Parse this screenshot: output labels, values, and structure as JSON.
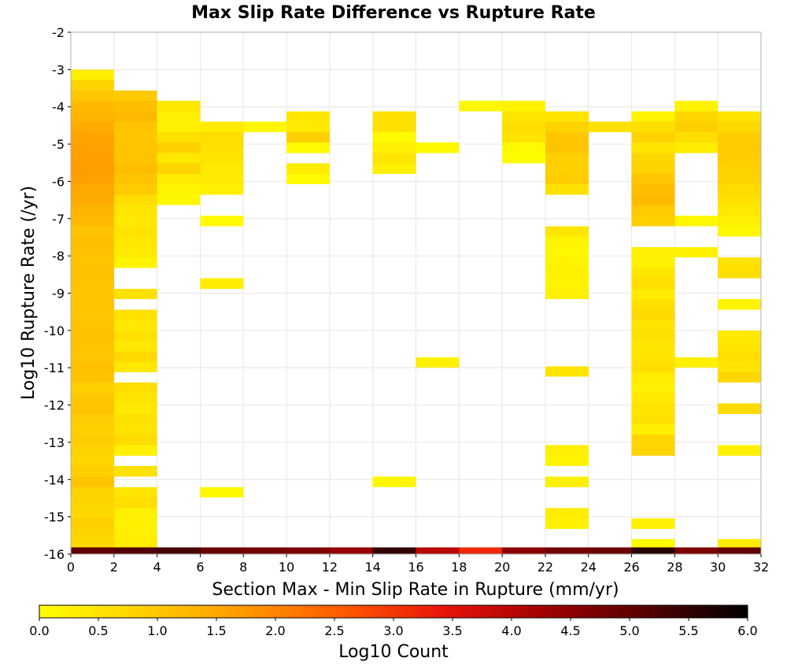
{
  "chart_data": {
    "type": "heatmap",
    "title": "Max Slip Rate Difference vs Rupture Rate",
    "xlabel": "Section Max - Min Slip Rate in Rupture (mm/yr)",
    "ylabel": "Log10 Rupture Rate (/yr)",
    "xlim": [
      0,
      32
    ],
    "ylim": [
      -16,
      -2
    ],
    "x_ticks": [
      "0",
      "2",
      "4",
      "6",
      "8",
      "10",
      "12",
      "14",
      "16",
      "18",
      "20",
      "22",
      "24",
      "26",
      "28",
      "30",
      "32"
    ],
    "y_ticks": [
      "-2",
      "-3",
      "-4",
      "-5",
      "-6",
      "-7",
      "-8",
      "-9",
      "-10",
      "-11",
      "-12",
      "-13",
      "-14",
      "-15",
      "-16"
    ],
    "grid": true,
    "x_bin_width": 2,
    "y_bin_height": 0.28,
    "colorbar": {
      "label": "Log10 Count",
      "min": 0.0,
      "max": 6.0,
      "ticks": [
        "0.0",
        "0.5",
        "1.0",
        "1.5",
        "2.0",
        "2.5",
        "3.0",
        "3.5",
        "4.0",
        "4.5",
        "5.0",
        "5.5",
        "6.0"
      ],
      "stops": [
        "#ffff00",
        "#ffd000",
        "#ff9a00",
        "#ff5a00",
        "#e8140a",
        "#a00000",
        "#550000",
        "#000000"
      ]
    },
    "columns": [
      {
        "x": 1,
        "cells": [
          [
            -3.14,
            0.3
          ],
          [
            -3.42,
            0.8
          ],
          [
            -3.7,
            1.0
          ],
          [
            -3.98,
            1.2
          ],
          [
            -4.26,
            1.3
          ],
          [
            -4.54,
            1.45
          ],
          [
            -4.82,
            1.55
          ],
          [
            -5.1,
            1.6
          ],
          [
            -5.38,
            1.62
          ],
          [
            -5.66,
            1.65
          ],
          [
            -5.94,
            1.6
          ],
          [
            -6.22,
            1.5
          ],
          [
            -6.5,
            1.45
          ],
          [
            -6.78,
            1.3
          ],
          [
            -7.06,
            1.2
          ],
          [
            -7.34,
            1.05
          ],
          [
            -7.62,
            1.15
          ],
          [
            -7.9,
            1.1
          ],
          [
            -8.18,
            1.05
          ],
          [
            -8.46,
            1.1
          ],
          [
            -8.74,
            1.05
          ],
          [
            -9.02,
            1.0
          ],
          [
            -9.3,
            1.05
          ],
          [
            -9.58,
            1.0
          ],
          [
            -9.86,
            1.05
          ],
          [
            -10.14,
            1.1
          ],
          [
            -10.42,
            1.05
          ],
          [
            -10.7,
            1.0
          ],
          [
            -10.98,
            1.1
          ],
          [
            -11.26,
            1.05
          ],
          [
            -11.54,
            0.85
          ],
          [
            -11.82,
            1.0
          ],
          [
            -12.1,
            1.05
          ],
          [
            -12.38,
            0.9
          ],
          [
            -12.66,
            0.85
          ],
          [
            -12.94,
            0.9
          ],
          [
            -13.22,
            0.8
          ],
          [
            -13.5,
            0.75
          ],
          [
            -13.78,
            0.85
          ],
          [
            -14.06,
            1.05
          ],
          [
            -14.34,
            0.8
          ],
          [
            -14.62,
            0.75
          ],
          [
            -14.9,
            0.7
          ],
          [
            -15.18,
            0.85
          ],
          [
            -15.46,
            0.75
          ],
          [
            -15.74,
            0.7
          ],
          [
            -15.96,
            5.0
          ]
        ]
      },
      {
        "x": 3,
        "cells": [
          [
            -3.7,
            0.95
          ],
          [
            -3.98,
            1.15
          ],
          [
            -4.26,
            1.2
          ],
          [
            -4.54,
            1.05
          ],
          [
            -4.82,
            1.0
          ],
          [
            -5.1,
            1.05
          ],
          [
            -5.38,
            1.05
          ],
          [
            -5.66,
            1.15
          ],
          [
            -5.94,
            1.05
          ],
          [
            -6.22,
            0.95
          ],
          [
            -6.5,
            0.6
          ],
          [
            -6.78,
            0.45
          ],
          [
            -7.06,
            0.4
          ],
          [
            -7.34,
            0.5
          ],
          [
            -7.62,
            0.4
          ],
          [
            -7.9,
            0.35
          ],
          [
            -8.18,
            0.2
          ],
          [
            -9.02,
            0.55
          ],
          [
            -9.58,
            0.55
          ],
          [
            -9.86,
            0.4
          ],
          [
            -10.14,
            0.55
          ],
          [
            -10.42,
            0.4
          ],
          [
            -10.7,
            0.7
          ],
          [
            -10.98,
            0.4
          ],
          [
            -11.54,
            0.6
          ],
          [
            -11.82,
            0.5
          ],
          [
            -12.1,
            0.4
          ],
          [
            -12.38,
            0.55
          ],
          [
            -12.66,
            0.5
          ],
          [
            -12.94,
            0.65
          ],
          [
            -13.22,
            0.25
          ],
          [
            -13.78,
            0.55
          ],
          [
            -14.34,
            0.45
          ],
          [
            -14.62,
            0.6
          ],
          [
            -14.9,
            0.3
          ],
          [
            -15.18,
            0.25
          ],
          [
            -15.46,
            0.3
          ],
          [
            -15.74,
            0.35
          ],
          [
            -15.96,
            5.2
          ]
        ]
      },
      {
        "x": 5,
        "cells": [
          [
            -3.98,
            0.4
          ],
          [
            -4.26,
            0.3
          ],
          [
            -4.54,
            0.25
          ],
          [
            -4.82,
            0.55
          ],
          [
            -5.1,
            0.85
          ],
          [
            -5.38,
            0.4
          ],
          [
            -5.66,
            0.75
          ],
          [
            -5.94,
            0.35
          ],
          [
            -6.22,
            0.2
          ],
          [
            -6.5,
            0.15
          ],
          [
            -15.96,
            5.3
          ]
        ]
      },
      {
        "x": 7,
        "cells": [
          [
            -4.54,
            0.35
          ],
          [
            -4.82,
            0.6
          ],
          [
            -5.1,
            0.55
          ],
          [
            -5.38,
            0.5
          ],
          [
            -5.66,
            0.4
          ],
          [
            -5.94,
            0.4
          ],
          [
            -6.22,
            0.3
          ],
          [
            -7.06,
            0.1
          ],
          [
            -8.74,
            0.35
          ],
          [
            -14.34,
            0.15
          ],
          [
            -15.96,
            4.9
          ]
        ]
      },
      {
        "x": 9,
        "cells": [
          [
            -4.54,
            0.15
          ],
          [
            -15.96,
            4.8
          ]
        ]
      },
      {
        "x": 11,
        "cells": [
          [
            -4.26,
            0.45
          ],
          [
            -4.54,
            0.4
          ],
          [
            -4.82,
            0.85
          ],
          [
            -5.1,
            0.1
          ],
          [
            -5.66,
            0.35
          ],
          [
            -5.94,
            0.1
          ],
          [
            -15.96,
            4.7
          ]
        ]
      },
      {
        "x": 13,
        "cells": [
          [
            -15.96,
            4.4
          ]
        ]
      },
      {
        "x": 15,
        "cells": [
          [
            -4.26,
            0.55
          ],
          [
            -4.54,
            0.55
          ],
          [
            -4.82,
            0.1
          ],
          [
            -5.1,
            0.3
          ],
          [
            -5.38,
            0.5
          ],
          [
            -5.66,
            0.3
          ],
          [
            -14.06,
            0.15
          ],
          [
            -15.96,
            5.5
          ]
        ]
      },
      {
        "x": 17,
        "cells": [
          [
            -5.1,
            0.15
          ],
          [
            -10.86,
            0.25
          ],
          [
            -15.96,
            4.0
          ]
        ]
      },
      {
        "x": 19,
        "cells": [
          [
            -3.98,
            0.15
          ],
          [
            -15.96,
            3.2
          ]
        ]
      },
      {
        "x": 21,
        "cells": [
          [
            -3.98,
            0.2
          ],
          [
            -4.26,
            0.45
          ],
          [
            -4.54,
            0.6
          ],
          [
            -4.82,
            0.5
          ],
          [
            -5.1,
            0.1
          ],
          [
            -5.38,
            0.05
          ],
          [
            -15.96,
            4.5
          ]
        ]
      },
      {
        "x": 23,
        "cells": [
          [
            -4.26,
            0.5
          ],
          [
            -4.54,
            0.8
          ],
          [
            -4.82,
            1.0
          ],
          [
            -5.1,
            1.05
          ],
          [
            -5.38,
            0.85
          ],
          [
            -5.66,
            0.85
          ],
          [
            -5.94,
            0.9
          ],
          [
            -6.22,
            0.55
          ],
          [
            -7.34,
            0.45
          ],
          [
            -7.62,
            0.2
          ],
          [
            -7.9,
            0.15
          ],
          [
            -8.18,
            0.2
          ],
          [
            -8.46,
            0.25
          ],
          [
            -8.74,
            0.2
          ],
          [
            -9.02,
            0.3
          ],
          [
            -11.1,
            0.5
          ],
          [
            -13.22,
            0.3
          ],
          [
            -13.5,
            0.2
          ],
          [
            -14.06,
            0.3
          ],
          [
            -14.9,
            0.35
          ],
          [
            -15.18,
            0.25
          ],
          [
            -15.96,
            4.8
          ]
        ]
      },
      {
        "x": 25,
        "cells": [
          [
            -4.54,
            0.55
          ],
          [
            -15.96,
            4.9
          ]
        ]
      },
      {
        "x": 27,
        "cells": [
          [
            -4.26,
            0.2
          ],
          [
            -4.54,
            0.6
          ],
          [
            -4.82,
            0.8
          ],
          [
            -5.1,
            0.5
          ],
          [
            -5.38,
            0.75
          ],
          [
            -5.66,
            0.8
          ],
          [
            -5.94,
            1.0
          ],
          [
            -6.22,
            1.15
          ],
          [
            -6.5,
            1.2
          ],
          [
            -6.78,
            0.95
          ],
          [
            -7.06,
            0.85
          ],
          [
            -7.9,
            0.3
          ],
          [
            -8.18,
            0.25
          ],
          [
            -8.46,
            0.45
          ],
          [
            -8.74,
            0.6
          ],
          [
            -9.02,
            0.35
          ],
          [
            -9.3,
            0.55
          ],
          [
            -9.58,
            0.7
          ],
          [
            -9.86,
            0.5
          ],
          [
            -10.14,
            0.55
          ],
          [
            -10.42,
            0.45
          ],
          [
            -10.7,
            0.5
          ],
          [
            -10.98,
            0.6
          ],
          [
            -11.26,
            0.35
          ],
          [
            -11.54,
            0.3
          ],
          [
            -11.82,
            0.4
          ],
          [
            -12.1,
            0.5
          ],
          [
            -12.38,
            0.55
          ],
          [
            -12.66,
            0.3
          ],
          [
            -12.94,
            0.75
          ],
          [
            -13.22,
            0.8
          ],
          [
            -15.18,
            0.3
          ],
          [
            -15.74,
            0.1
          ],
          [
            -15.96,
            5.6
          ]
        ]
      },
      {
        "x": 29,
        "cells": [
          [
            -3.98,
            0.2
          ],
          [
            -4.26,
            0.75
          ],
          [
            -4.54,
            0.85
          ],
          [
            -4.82,
            0.6
          ],
          [
            -5.1,
            0.35
          ],
          [
            -7.06,
            0.15
          ],
          [
            -7.9,
            0.25
          ],
          [
            -10.86,
            0.3
          ],
          [
            -15.96,
            4.7
          ]
        ]
      },
      {
        "x": 31,
        "cells": [
          [
            -4.26,
            0.5
          ],
          [
            -4.54,
            0.7
          ],
          [
            -4.82,
            0.9
          ],
          [
            -5.1,
            0.95
          ],
          [
            -5.38,
            0.9
          ],
          [
            -5.66,
            0.85
          ],
          [
            -5.94,
            0.8
          ],
          [
            -6.22,
            0.65
          ],
          [
            -6.5,
            0.55
          ],
          [
            -6.78,
            0.4
          ],
          [
            -7.06,
            0.3
          ],
          [
            -7.34,
            0.15
          ],
          [
            -8.18,
            0.55
          ],
          [
            -8.46,
            0.6
          ],
          [
            -9.3,
            0.2
          ],
          [
            -10.14,
            0.4
          ],
          [
            -10.42,
            0.45
          ],
          [
            -10.7,
            0.6
          ],
          [
            -10.98,
            0.5
          ],
          [
            -11.26,
            0.75
          ],
          [
            -12.1,
            0.65
          ],
          [
            -13.22,
            0.25
          ],
          [
            -15.74,
            0.35
          ],
          [
            -15.96,
            5.0
          ]
        ]
      }
    ]
  }
}
